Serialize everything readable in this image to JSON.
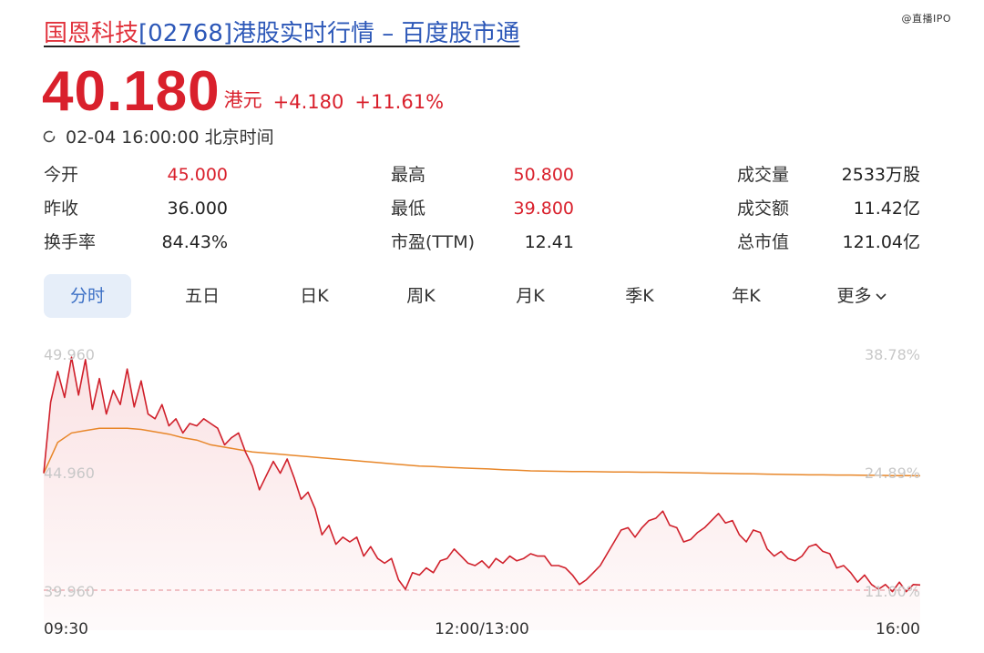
{
  "header": {
    "stock_name": "国恩科技",
    "title_rest": "[02768]港股实时行情 – 百度股市通",
    "watermark": "@直播IPO"
  },
  "quote": {
    "price": "40.180",
    "unit": "港元",
    "change": "+4.180",
    "change_pct": "+11.61%",
    "timestamp": "02-04 16:00:00 北京时间"
  },
  "stats": [
    {
      "label": "今开",
      "value": "45.000",
      "color": "#d9202c"
    },
    {
      "label": "最高",
      "value": "50.800",
      "color": "#d9202c"
    },
    {
      "label": "成交量",
      "value": "2533万股",
      "color": "#222222"
    },
    {
      "label": "昨收",
      "value": "36.000",
      "color": "#222222"
    },
    {
      "label": "最低",
      "value": "39.800",
      "color": "#d9202c"
    },
    {
      "label": "成交额",
      "value": "11.42亿",
      "color": "#222222"
    },
    {
      "label": "换手率",
      "value": "84.43%",
      "color": "#222222"
    },
    {
      "label": "市盈(TTM)",
      "value": "12.41",
      "color": "#222222"
    },
    {
      "label": "总市值",
      "value": "121.04亿",
      "color": "#222222"
    }
  ],
  "tabs": [
    {
      "label": "分时",
      "active": true
    },
    {
      "label": "五日",
      "active": false
    },
    {
      "label": "日K",
      "active": false
    },
    {
      "label": "周K",
      "active": false
    },
    {
      "label": "月K",
      "active": false
    },
    {
      "label": "季K",
      "active": false
    },
    {
      "label": "年K",
      "active": false
    },
    {
      "label": "更多",
      "active": false
    }
  ],
  "colors": {
    "up_red": "#d9202c",
    "price_line": "#d0202b",
    "avg_line": "#e8872a",
    "tab_active_bg": "#e6eef9",
    "tab_active_text": "#3b6fc5",
    "axis_label": "#c8c8c8"
  },
  "chart_data": {
    "type": "line",
    "y_left_labels": [
      "49.960",
      "44.960",
      "39.960"
    ],
    "y_right_labels": [
      "38.78%",
      "24.89%",
      "11.00%"
    ],
    "x_labels": [
      "09:30",
      "12:00/13:00",
      "16:00"
    ],
    "ylim": [
      39.96,
      49.96
    ],
    "reference_line": 39.96,
    "series": [
      {
        "values": [
          44.9,
          47.9,
          49.2,
          48.1,
          49.8,
          48.2,
          49.7,
          47.6,
          48.9,
          47.4,
          48.4,
          47.8,
          49.3,
          47.7,
          48.8,
          47.4,
          47.2,
          47.8,
          46.9,
          47.2,
          46.6,
          47.0,
          46.9,
          47.2,
          47.0,
          46.8,
          46.1,
          46.4,
          46.6,
          45.8,
          45.2,
          44.2,
          44.8,
          45.4,
          44.9,
          45.5,
          44.7,
          43.8,
          44.1,
          43.4,
          42.3,
          42.7,
          41.9,
          42.2,
          42.0,
          42.2,
          41.4,
          41.8,
          41.3,
          41.1,
          41.3,
          40.4,
          40.0,
          40.7,
          40.6,
          40.9,
          40.7,
          41.2,
          41.3,
          41.7,
          41.4,
          41.1,
          41.0,
          41.2,
          40.9,
          41.3,
          41.1,
          41.4,
          41.2,
          41.3,
          41.5,
          41.4,
          41.4,
          41.0,
          41.0,
          40.9,
          40.6,
          40.2,
          40.4,
          40.7,
          41.0,
          41.5,
          42.0,
          42.5,
          42.6,
          42.2,
          42.6,
          42.9,
          43.0,
          43.3,
          42.7,
          42.6,
          42.0,
          42.1,
          42.4,
          42.6,
          42.9,
          43.2,
          42.8,
          42.9,
          42.3,
          42.0,
          42.5,
          42.4,
          41.7,
          41.4,
          41.6,
          41.3,
          41.2,
          41.4,
          41.8,
          41.9,
          41.6,
          41.5,
          40.9,
          41.0,
          40.7,
          40.3,
          40.6,
          40.2,
          40.0,
          40.2,
          39.9,
          40.3,
          39.9,
          40.2,
          40.18
        ]
      },
      {
        "values": [
          44.9,
          46.2,
          46.6,
          46.7,
          46.8,
          46.8,
          46.8,
          46.75,
          46.65,
          46.55,
          46.4,
          46.3,
          46.1,
          46.0,
          45.9,
          45.8,
          45.75,
          45.7,
          45.65,
          45.6,
          45.55,
          45.5,
          45.45,
          45.4,
          45.35,
          45.3,
          45.25,
          45.2,
          45.18,
          45.15,
          45.12,
          45.1,
          45.08,
          45.05,
          45.03,
          45.0,
          44.99,
          44.98,
          44.97,
          44.97,
          44.96,
          44.95,
          44.95,
          44.94,
          44.94,
          44.93,
          44.92,
          44.91,
          44.9,
          44.89,
          44.88,
          44.87,
          44.86,
          44.85,
          44.84,
          44.83,
          44.83,
          44.82,
          44.82,
          44.81,
          44.81,
          44.8,
          44.8,
          44.79
        ]
      }
    ]
  }
}
